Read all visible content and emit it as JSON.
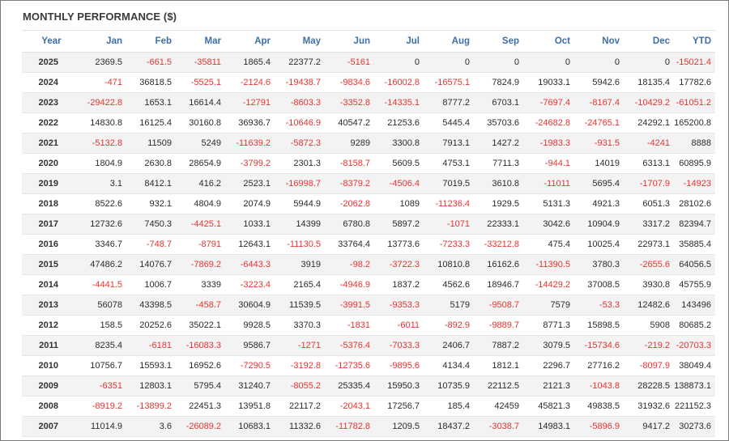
{
  "panel": {
    "title": "MONTHLY PERFORMANCE ($)"
  },
  "colors": {
    "header_text": "#3f6fa6",
    "negative": "#e8332f",
    "positive": "#2b2b2b",
    "stripe": "#f3f3f3"
  },
  "table": {
    "columns": [
      "Year",
      "Jan",
      "Feb",
      "Mar",
      "Apr",
      "May",
      "Jun",
      "Jul",
      "Aug",
      "Sep",
      "Oct",
      "Nov",
      "Dec",
      "YTD"
    ],
    "rows": [
      [
        "2025",
        "2369.5",
        "-661.5",
        "-35811",
        "1865.4",
        "22377.2",
        "-5161",
        "0",
        "0",
        "0",
        "0",
        "0",
        "0",
        "-15021.4"
      ],
      [
        "2024",
        "-471",
        "36818.5",
        "-5525.1",
        "-2124.6",
        "-19438.7",
        "-9834.6",
        "-16002.8",
        "-16575.1",
        "7824.9",
        "19033.1",
        "5942.6",
        "18135.4",
        "17782.6"
      ],
      [
        "2023",
        "-29422.8",
        "1653.1",
        "16614.4",
        "-12791",
        "-8603.3",
        "-3352.8",
        "-14335.1",
        "8777.2",
        "6703.1",
        "-7697.4",
        "-8167.4",
        "-10429.2",
        "-61051.2"
      ],
      [
        "2022",
        "14830.8",
        "16125.4",
        "30160.8",
        "36936.7",
        "-10646.9",
        "40547.2",
        "21253.6",
        "5445.4",
        "35703.6",
        "-24682.8",
        "-24765.1",
        "24292.1",
        "165200.8"
      ],
      [
        "2021",
        "-5132.8",
        "11509",
        "5249",
        "-11639.2",
        "-5872.3",
        "9289",
        "3300.8",
        "7913.1",
        "1427.2",
        "-1983.3",
        "-931.5",
        "-4241",
        "8888"
      ],
      [
        "2020",
        "1804.9",
        "2630.8",
        "28654.9",
        "-3799.2",
        "2301.3",
        "-8158.7",
        "5609.5",
        "4753.1",
        "7711.3",
        "-944.1",
        "14019",
        "6313.1",
        "60895.9"
      ],
      [
        "2019",
        "3.1",
        "8412.1",
        "416.2",
        "2523.1",
        "-16998.7",
        "-8379.2",
        "-4506.4",
        "7019.5",
        "3610.8",
        "-11011",
        "5695.4",
        "-1707.9",
        "-14923"
      ],
      [
        "2018",
        "8522.6",
        "932.1",
        "4804.9",
        "2074.9",
        "5944.9",
        "-2062.8",
        "1089",
        "-11236.4",
        "1929.5",
        "5131.3",
        "4921.3",
        "6051.3",
        "28102.6"
      ],
      [
        "2017",
        "12732.6",
        "7450.3",
        "-4425.1",
        "1033.1",
        "14399",
        "6780.8",
        "5897.2",
        "-1071",
        "22333.1",
        "3042.6",
        "10904.9",
        "3317.2",
        "82394.7"
      ],
      [
        "2016",
        "3346.7",
        "-748.7",
        "-8791",
        "12643.1",
        "-11130.5",
        "33764.4",
        "13773.6",
        "-7233.3",
        "-33212.8",
        "475.4",
        "10025.4",
        "22973.1",
        "35885.4"
      ],
      [
        "2015",
        "47486.2",
        "14076.7",
        "-7869.2",
        "-6443.3",
        "3919",
        "-98.2",
        "-3722.3",
        "10810.8",
        "16162.6",
        "-11390.5",
        "3780.3",
        "-2655.6",
        "64056.5"
      ],
      [
        "2014",
        "-4441.5",
        "1006.7",
        "3339",
        "-3223.4",
        "2165.4",
        "-4946.9",
        "1837.2",
        "4562.6",
        "18946.7",
        "-14429.2",
        "37008.5",
        "3930.8",
        "45755.9"
      ],
      [
        "2013",
        "56078",
        "43398.5",
        "-458.7",
        "30604.9",
        "11539.5",
        "-3991.5",
        "-9353.3",
        "5179",
        "-9508.7",
        "7579",
        "-53.3",
        "12482.6",
        "143496"
      ],
      [
        "2012",
        "158.5",
        "20252.6",
        "35022.1",
        "9928.5",
        "3370.3",
        "-1831",
        "-6011",
        "-892.9",
        "-9889.7",
        "8771.3",
        "15898.5",
        "5908",
        "80685.2"
      ],
      [
        "2011",
        "8235.4",
        "-6181",
        "-16083.3",
        "9586.7",
        "-1271",
        "-5376.4",
        "-7033.3",
        "2406.7",
        "7887.2",
        "3079.5",
        "-15734.6",
        "-219.2",
        "-20703.3"
      ],
      [
        "2010",
        "10756.7",
        "15593.1",
        "16952.6",
        "-7290.5",
        "-3192.8",
        "-12735.6",
        "-9895.6",
        "4134.4",
        "1812.1",
        "2296.7",
        "27716.2",
        "-8097.9",
        "38049.4"
      ],
      [
        "2009",
        "-6351",
        "12803.1",
        "5795.4",
        "31240.7",
        "-8055.2",
        "25335.4",
        "15950.3",
        "10735.9",
        "22112.5",
        "2121.3",
        "-1043.8",
        "28228.5",
        "138873.1"
      ],
      [
        "2008",
        "-8919.2",
        "-13899.2",
        "22451.3",
        "13951.8",
        "22117.2",
        "-2043.1",
        "17256.7",
        "185.4",
        "42459",
        "45821.3",
        "49838.5",
        "31932.6",
        "221152.3"
      ],
      [
        "2007",
        "11014.9",
        "3.6",
        "-26089.2",
        "10683.1",
        "11332.6",
        "-11782.8",
        "1209.5",
        "18437.2",
        "-3038.7",
        "14983.1",
        "-5896.9",
        "9417.2",
        "30273.6"
      ]
    ]
  }
}
